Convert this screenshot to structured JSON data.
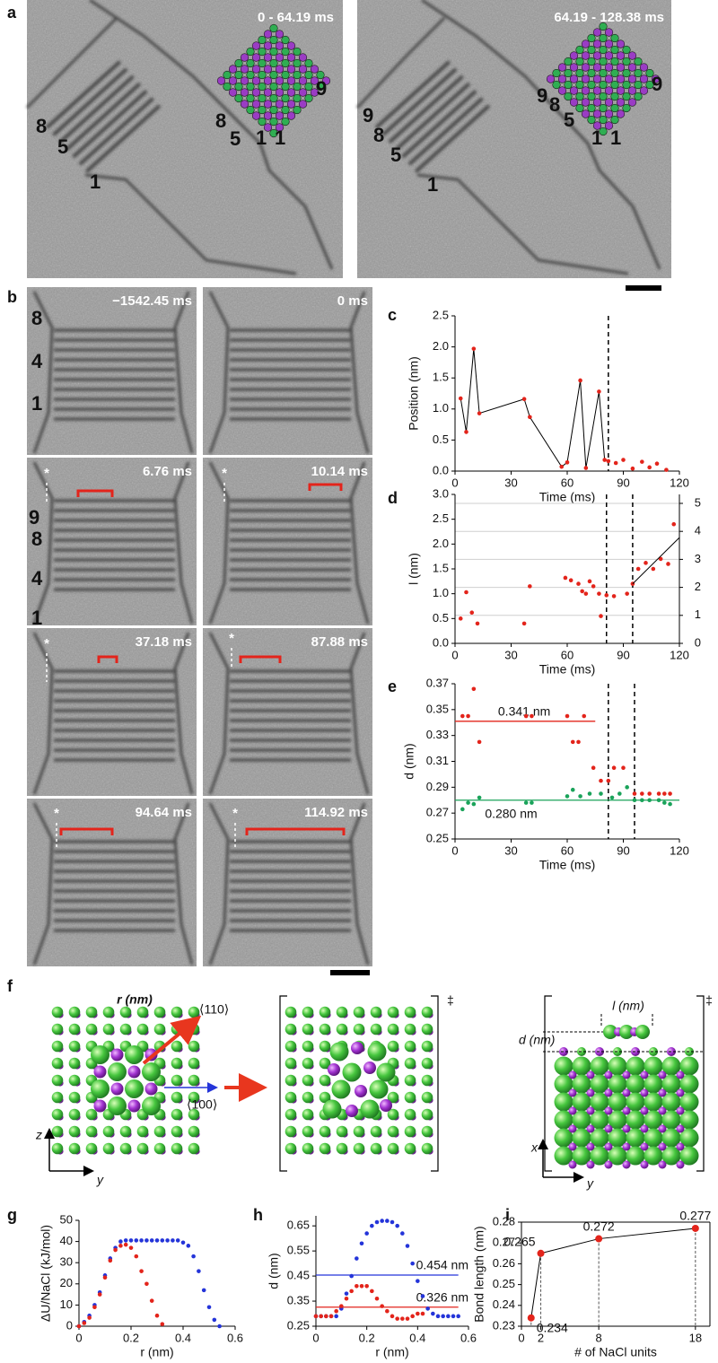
{
  "figure": {
    "panel_a": {
      "label": "a",
      "timestamps": [
        "0 - 64.19 ms",
        "64.19 - 128.38 ms"
      ],
      "left_image_labels": [
        "8",
        "5",
        "1"
      ],
      "left_inset_labels": [
        "8",
        "5",
        "1",
        "1",
        "9"
      ],
      "right_image_labels": [
        "9",
        "8",
        "5",
        "1"
      ],
      "right_inset_labels": [
        "9",
        "8",
        "5",
        "1",
        "1",
        "9"
      ]
    },
    "panel_b": {
      "label": "b",
      "timestamps": [
        "−1542.45 ms",
        "0 ms",
        "6.76 ms",
        "10.14 ms",
        "37.18 ms",
        "87.88 ms",
        "94.64 ms",
        "114.92 ms"
      ],
      "first_tile_labels": [
        "8",
        "4",
        "1"
      ],
      "third_tile_labels": [
        "9",
        "8",
        "4",
        "1"
      ],
      "markers": [
        "*",
        "*",
        "*",
        "*",
        "*",
        "*"
      ]
    },
    "panel_f": {
      "label": "f",
      "r_label": "r (nm)",
      "direction_110": "⟨110⟩",
      "direction_100": "⟨100⟩",
      "left_axes": [
        "z",
        "y"
      ],
      "transition_marks": [
        "‡",
        "‡"
      ],
      "l_label": "l (nm)",
      "d_label": "d (nm)",
      "right_axes": [
        "x",
        "y"
      ]
    }
  },
  "chart_data": [
    {
      "label": "c",
      "type": "scatter",
      "xlabel": "Time (ms)",
      "ylabel": "Position (nm)",
      "xlim": [
        0,
        120
      ],
      "ylim": [
        0,
        2.5
      ],
      "xticks": [
        0,
        30,
        60,
        90,
        120
      ],
      "yticks": [
        {
          "value": 0,
          "label": "0.0"
        },
        {
          "value": 0.5,
          "label": "0.5"
        },
        {
          "value": 1,
          "label": "1.0"
        },
        {
          "value": 1.5,
          "label": "1.5"
        },
        {
          "value": 2,
          "label": "2.0"
        },
        {
          "value": 2.5,
          "label": "2.5"
        }
      ],
      "vlines": [
        82
      ],
      "series": [
        {
          "color": "#e3241b",
          "line": true,
          "x": [
            3,
            6,
            10,
            13,
            37,
            40,
            57,
            60,
            67,
            70,
            77,
            80
          ],
          "values": [
            1.17,
            0.63,
            1.97,
            0.93,
            1.16,
            0.87,
            0.07,
            0.14,
            1.46,
            0.05,
            1.28,
            0.18
          ]
        },
        {
          "color": "#e3241b",
          "x": [
            82,
            86,
            90,
            95,
            100,
            104,
            108,
            113
          ],
          "values": [
            0.16,
            0.13,
            0.18,
            0.04,
            0.15,
            0.06,
            0.12,
            0.02
          ]
        }
      ]
    },
    {
      "label": "d",
      "type": "scatter",
      "xlabel": "Time (ms)",
      "ylabel": "l (nm)",
      "xlim": [
        0,
        120
      ],
      "ylim": [
        0,
        3
      ],
      "xticks": [
        0,
        30,
        60,
        90,
        120
      ],
      "yticks": [
        {
          "value": 0,
          "label": "0.0"
        },
        {
          "value": 0.5,
          "label": "0.5"
        },
        {
          "value": 1,
          "label": "1.0"
        },
        {
          "value": 1.5,
          "label": "1.5"
        },
        {
          "value": 2,
          "label": "2.0"
        },
        {
          "value": 2.5,
          "label": "2.5"
        },
        {
          "value": 3,
          "label": "3.0"
        }
      ],
      "y2lim": [
        0,
        5.32
      ],
      "y2ticks": [
        0,
        1,
        2,
        3,
        4,
        5
      ],
      "grid": true,
      "vlines": [
        81,
        95
      ],
      "series": [
        {
          "color": "#e3241b",
          "x": [
            3,
            6,
            9,
            12,
            37,
            40,
            59,
            62,
            66,
            68,
            70,
            72,
            74,
            77,
            78,
            81,
            85,
            92,
            95,
            98,
            102,
            106,
            110,
            114,
            117
          ],
          "values": [
            0.5,
            1.03,
            0.62,
            0.4,
            0.4,
            1.15,
            1.32,
            1.27,
            1.2,
            1.05,
            1.0,
            1.25,
            1.15,
            1.0,
            0.55,
            0.97,
            0.95,
            1.0,
            1.2,
            1.5,
            1.62,
            1.5,
            1.7,
            1.6,
            2.4
          ]
        },
        {
          "color": "#000000",
          "line": true,
          "marker": false,
          "x": [
            95,
            120
          ],
          "values": [
            1.2,
            2.13
          ]
        }
      ]
    },
    {
      "label": "e",
      "type": "scatter",
      "xlabel": "Time (ms)",
      "ylabel": "d (nm)",
      "xlim": [
        0,
        120
      ],
      "ylim": [
        0.25,
        0.37
      ],
      "xticks": [
        0,
        30,
        60,
        90,
        120
      ],
      "yticks": [
        0.25,
        0.27,
        0.29,
        0.31,
        0.33,
        0.35,
        0.37
      ],
      "vlines": [
        82,
        96
      ],
      "hlines": [
        {
          "value": 0.341,
          "label": "0.341 nm",
          "color": "#e3241b",
          "xrange": [
            0,
            75
          ]
        },
        {
          "value": 0.28,
          "label": "0.280 nm",
          "color": "#1aa35a",
          "xrange": [
            0,
            120
          ]
        }
      ],
      "series": [
        {
          "color": "#e3241b",
          "x": [
            4,
            7,
            10,
            13,
            38,
            41,
            60,
            63,
            66,
            69,
            74,
            78,
            82,
            85,
            90,
            96,
            100,
            104,
            109,
            112,
            115
          ],
          "values": [
            0.345,
            0.345,
            0.366,
            0.325,
            0.345,
            0.345,
            0.345,
            0.325,
            0.325,
            0.345,
            0.305,
            0.295,
            0.295,
            0.305,
            0.305,
            0.285,
            0.285,
            0.285,
            0.285,
            0.285,
            0.285
          ]
        },
        {
          "color": "#1aa35a",
          "x": [
            4,
            7,
            10,
            13,
            38,
            41,
            60,
            63,
            67,
            72,
            78,
            84,
            88,
            92,
            96,
            100,
            104,
            109,
            112,
            115
          ],
          "values": [
            0.273,
            0.278,
            0.277,
            0.282,
            0.278,
            0.278,
            0.283,
            0.288,
            0.283,
            0.285,
            0.285,
            0.282,
            0.285,
            0.29,
            0.28,
            0.28,
            0.28,
            0.28,
            0.278,
            0.277
          ]
        }
      ]
    },
    {
      "label": "g",
      "type": "scatter",
      "xlabel": "r (nm)",
      "ylabel": "ΔU/NaCl (kJ/mol)",
      "xlim": [
        0,
        0.6
      ],
      "ylim": [
        0,
        50
      ],
      "xticks": [
        0,
        0.2,
        0.4,
        0.6
      ],
      "yticks": [
        0,
        10,
        20,
        30,
        40,
        50
      ],
      "series": [
        {
          "color": "#2434d9",
          "x": [
            0,
            0.02,
            0.04,
            0.06,
            0.08,
            0.1,
            0.12,
            0.14,
            0.16,
            0.18,
            0.2,
            0.22,
            0.24,
            0.26,
            0.28,
            0.3,
            0.32,
            0.34,
            0.36,
            0.38,
            0.4,
            0.42,
            0.44,
            0.46,
            0.48,
            0.5,
            0.52,
            0.54
          ],
          "values": [
            0,
            2,
            5,
            10,
            16,
            24,
            32,
            37,
            40,
            40.5,
            40.5,
            40.5,
            40.5,
            40.5,
            40.5,
            40.5,
            40.5,
            40.5,
            40.5,
            40.5,
            39.5,
            38,
            33,
            26,
            17,
            9,
            3,
            0
          ]
        },
        {
          "color": "#e3241b",
          "x": [
            0,
            0.02,
            0.04,
            0.06,
            0.08,
            0.1,
            0.12,
            0.14,
            0.16,
            0.18,
            0.2,
            0.22,
            0.24,
            0.26,
            0.28,
            0.3,
            0.32
          ],
          "values": [
            0,
            1.5,
            4,
            9,
            15,
            23,
            31,
            36,
            38,
            38.5,
            37,
            33,
            26,
            20,
            12,
            5,
            1
          ]
        }
      ]
    },
    {
      "label": "h",
      "type": "scatter",
      "xlabel": "r (nm)",
      "ylabel": "d (nm)",
      "xlim": [
        0,
        0.6
      ],
      "ylim": [
        0.25,
        0.69
      ],
      "xticks": [
        0,
        0.2,
        0.4,
        0.6
      ],
      "yticks": [
        0.25,
        0.35,
        0.45,
        0.55,
        0.65
      ],
      "hlines": [
        {
          "value": 0.454,
          "label": "0.454 nm",
          "color": "#2434d9",
          "xrange": [
            0,
            0.56
          ]
        },
        {
          "value": 0.326,
          "label": "0.326 nm",
          "color": "#e3241b",
          "xrange": [
            0,
            0.56
          ]
        }
      ],
      "series": [
        {
          "color": "#2434d9",
          "x": [
            0,
            0.02,
            0.04,
            0.06,
            0.08,
            0.1,
            0.12,
            0.14,
            0.16,
            0.18,
            0.2,
            0.22,
            0.24,
            0.26,
            0.28,
            0.3,
            0.32,
            0.34,
            0.36,
            0.38,
            0.4,
            0.42,
            0.44,
            0.46,
            0.48,
            0.5,
            0.52,
            0.54,
            0.56
          ],
          "values": [
            0.29,
            0.29,
            0.29,
            0.29,
            0.29,
            0.32,
            0.38,
            0.45,
            0.52,
            0.58,
            0.62,
            0.65,
            0.665,
            0.67,
            0.67,
            0.665,
            0.65,
            0.62,
            0.57,
            0.5,
            0.43,
            0.37,
            0.32,
            0.3,
            0.29,
            0.29,
            0.29,
            0.29,
            0.29
          ]
        },
        {
          "color": "#e3241b",
          "x": [
            0,
            0.02,
            0.04,
            0.06,
            0.08,
            0.1,
            0.12,
            0.14,
            0.16,
            0.18,
            0.2,
            0.22,
            0.24,
            0.26,
            0.28,
            0.3,
            0.32,
            0.34,
            0.36,
            0.38,
            0.4,
            0.42
          ],
          "values": [
            0.29,
            0.29,
            0.29,
            0.29,
            0.31,
            0.33,
            0.36,
            0.39,
            0.41,
            0.41,
            0.41,
            0.39,
            0.36,
            0.33,
            0.31,
            0.29,
            0.28,
            0.28,
            0.28,
            0.29,
            0.3,
            0.3
          ]
        }
      ]
    },
    {
      "label": "i",
      "type": "scatter",
      "xlabel": "# of NaCl units",
      "ylabel": "Bond length (nm)",
      "frame": true,
      "xlim": [
        0,
        19.5
      ],
      "ylim": [
        0.23,
        0.28
      ],
      "xticks": [
        0,
        2,
        8,
        18
      ],
      "yticks": [
        0.23,
        0.24,
        0.25,
        0.26,
        0.27,
        0.28
      ],
      "series": [
        {
          "color": "#e3241b",
          "line": true,
          "point_labels": true,
          "droplines": true,
          "x": [
            1,
            2,
            8,
            18
          ],
          "values": [
            0.234,
            0.265,
            0.272,
            0.277
          ]
        }
      ]
    }
  ]
}
